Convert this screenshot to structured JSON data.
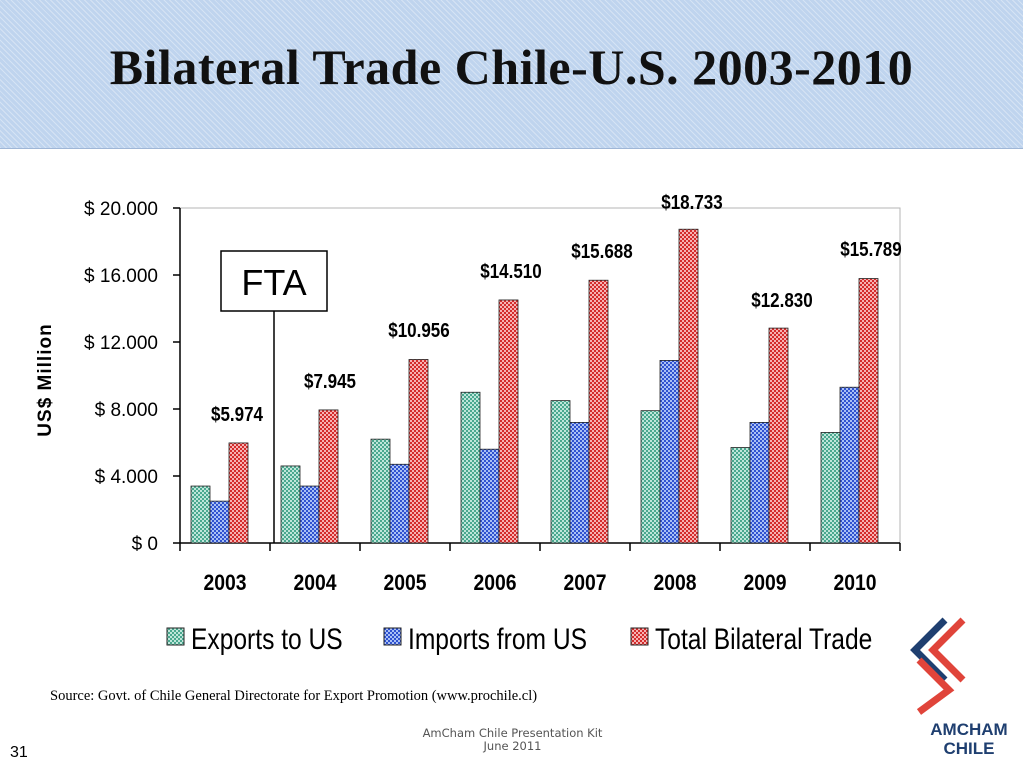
{
  "slide": {
    "title": "Bilateral Trade Chile-U.S. 2003-2010",
    "source": "Source: Govt. of Chile General Directorate for Export Promotion (www.prochile.cl)",
    "footer_line1": "AmCham Chile Presentation Kit",
    "footer_line2": "June 2011",
    "page_number": "31",
    "logo_line1": "AMCHAM",
    "logo_line2": "CHILE"
  },
  "chart_data": {
    "type": "bar",
    "title": "",
    "xlabel": "",
    "ylabel": "US$ Million",
    "ylim": [
      0,
      20000
    ],
    "y_ticks": [
      0,
      4000,
      8000,
      12000,
      16000,
      20000
    ],
    "y_tick_labels": [
      "$ 0",
      "$ 4.000",
      "$ 8.000",
      "$ 12.000",
      "$ 16.000",
      "$ 20.000"
    ],
    "categories": [
      "2003",
      "2004",
      "2005",
      "2006",
      "2007",
      "2008",
      "2009",
      "2010"
    ],
    "series": [
      {
        "name": "Exports to US",
        "color": "#5fb8a4",
        "values": [
          3400,
          4600,
          6200,
          9000,
          8500,
          7900,
          5700,
          6600
        ]
      },
      {
        "name": "Imports from US",
        "color": "#3a5fd9",
        "values": [
          2500,
          3400,
          4700,
          5600,
          7200,
          10900,
          7200,
          9300
        ]
      },
      {
        "name": "Total Bilateral Trade",
        "color": "#d93a3a",
        "values": [
          5974,
          7945,
          10956,
          14510,
          15688,
          18733,
          12830,
          15789
        ]
      }
    ],
    "data_labels": [
      "$5.974",
      "$7.945",
      "$10.956",
      "$14.510",
      "$15.688",
      "$18.733",
      "$12.830",
      "$15.789"
    ],
    "annotation": {
      "text": "FTA",
      "between": [
        "2003",
        "2004"
      ]
    },
    "legend_position": "bottom",
    "grid": false
  },
  "colors": {
    "title_band": "#bfd4ee",
    "logo_blue": "#1f3f70",
    "logo_red": "#e0443a"
  }
}
